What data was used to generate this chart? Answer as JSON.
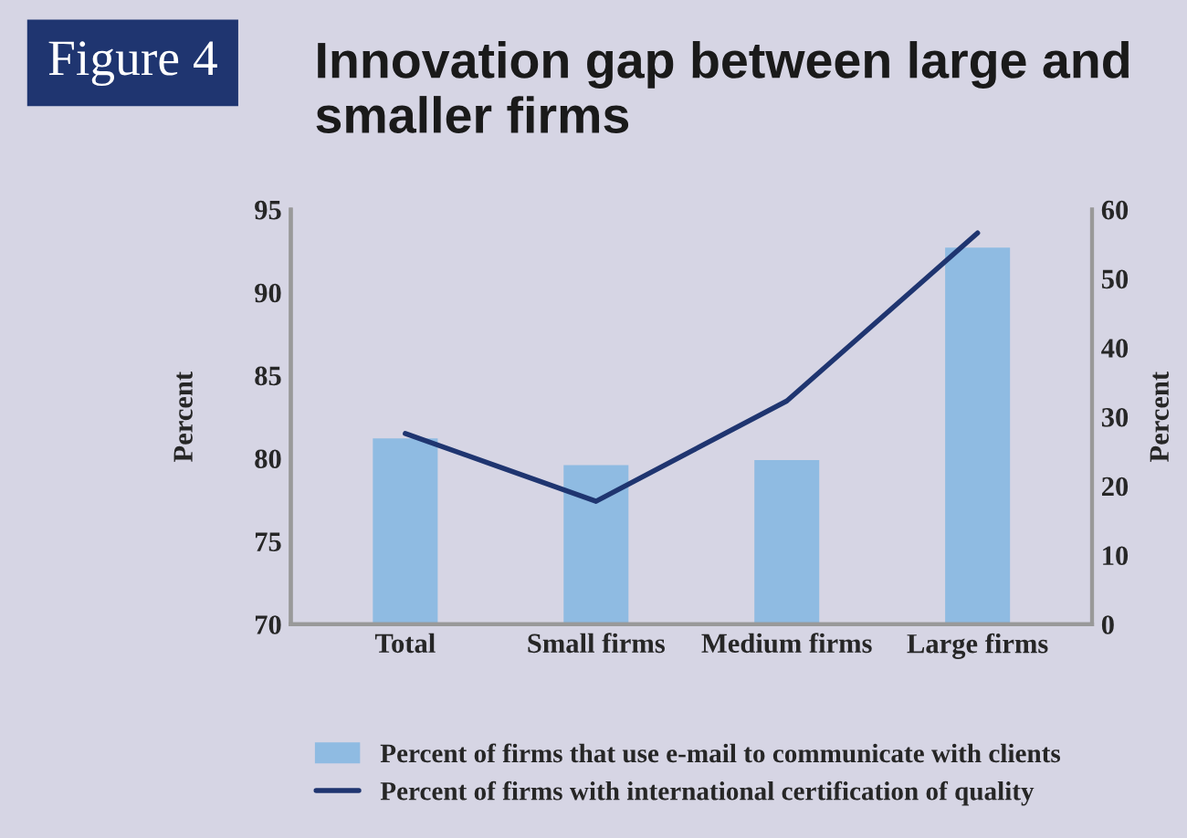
{
  "chart_data": {
    "type": "bar",
    "title": "Innovation gap between large and smaller firms",
    "annotations": [
      "Figure 4"
    ],
    "categories": [
      "Total",
      "Small firms",
      "Medium firms",
      "Large firms"
    ],
    "series": [
      {
        "name": "Percent of firms that use e-mail to communicate with clients",
        "color": "#8fbbe2",
        "values": [
          81.2,
          79.6,
          79.9,
          92.7
        ]
      },
      {
        "name": "Percent of firms with international certification of quality",
        "type": "line",
        "axis": "y2",
        "color": "#1f3570",
        "values": [
          27.6,
          17.8,
          32.3,
          56.6
        ]
      }
    ],
    "ylabel": "Percent",
    "y2label": "Percent",
    "ylim": [
      70,
      95
    ],
    "yticks": [
      70,
      75,
      80,
      85,
      90,
      95
    ],
    "y2lim": [
      0,
      60
    ],
    "y2ticks": [
      0,
      10,
      20,
      30,
      40,
      50,
      60
    ],
    "grid": false,
    "legend": "bottom",
    "marker": "none",
    "line_style": "solid"
  }
}
